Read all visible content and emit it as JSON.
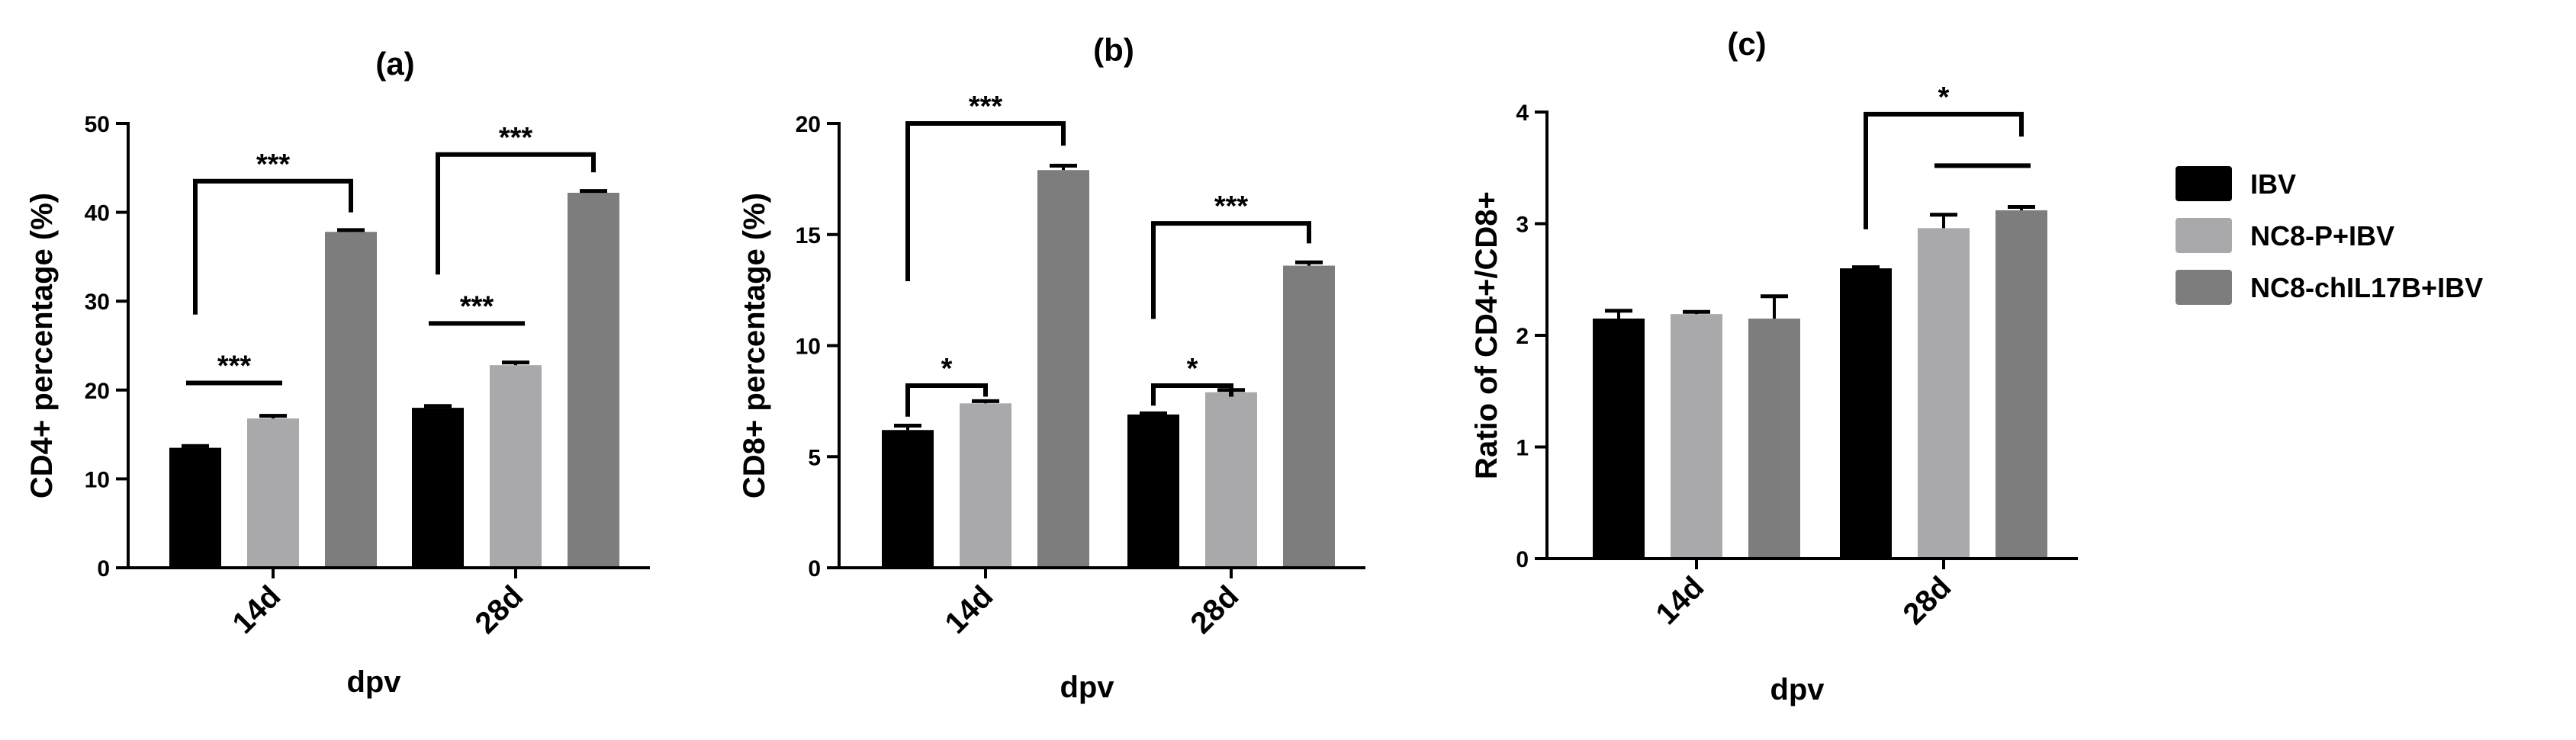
{
  "legend": [
    {
      "label": "IBV",
      "color": "#000000"
    },
    {
      "label": "NC8-P+IBV",
      "color": "#a9a9ab"
    },
    {
      "label": "NC8-chIL17B+IBV",
      "color": "#7d7d7d"
    }
  ],
  "chart_data": [
    {
      "type": "bar",
      "title": "(a)",
      "xlabel": "dpv",
      "ylabel": "CD4+ percentage (%)",
      "ylim": [
        0,
        50
      ],
      "yticks": [
        0,
        10,
        20,
        30,
        40,
        50
      ],
      "categories": [
        "14d",
        "28d"
      ],
      "series": [
        {
          "name": "IBV",
          "values": [
            13.5,
            18
          ],
          "errors": [
            0.2,
            0.2
          ]
        },
        {
          "name": "NC8-P+IBV",
          "values": [
            16.8,
            22.8
          ],
          "errors": [
            0.3,
            0.3
          ]
        },
        {
          "name": "NC8-chIL17B+IBV",
          "values": [
            37.8,
            42.2
          ],
          "errors": [
            0.2,
            0.2
          ]
        }
      ],
      "significance": [
        {
          "category": 0,
          "from": 0,
          "to": 1,
          "label": "***",
          "y": 20.8,
          "style": "line"
        },
        {
          "category": 0,
          "from": 0,
          "to": 2,
          "label": "***",
          "y": 43.5,
          "style": "bracket",
          "drop_left": 28.5,
          "drop_right": 40
        },
        {
          "category": 1,
          "from": 0,
          "to": 1,
          "label": "***",
          "y": 27.5,
          "style": "line"
        },
        {
          "category": 1,
          "from": 0,
          "to": 2,
          "label": "***",
          "y": 46.5,
          "style": "bracket",
          "drop_left": 33,
          "drop_right": 44.5
        }
      ]
    },
    {
      "type": "bar",
      "title": "(b)",
      "xlabel": "dpv",
      "ylabel": "CD8+ percentage (%)",
      "ylim": [
        0,
        20
      ],
      "yticks": [
        0,
        5,
        10,
        15,
        20
      ],
      "categories": [
        "14d",
        "28d"
      ],
      "series": [
        {
          "name": "IBV",
          "values": [
            6.2,
            6.9
          ],
          "errors": [
            0.2,
            0.05
          ]
        },
        {
          "name": "NC8-P+IBV",
          "values": [
            7.4,
            7.9
          ],
          "errors": [
            0.1,
            0.1
          ]
        },
        {
          "name": "NC8-chIL17B+IBV",
          "values": [
            17.9,
            13.6
          ],
          "errors": [
            0.2,
            0.15
          ]
        }
      ],
      "significance": [
        {
          "category": 0,
          "from": 0,
          "to": 1,
          "label": "*",
          "y": 8.2,
          "style": "bracket",
          "drop_left": 6.8,
          "drop_right": 7.7
        },
        {
          "category": 0,
          "from": 0,
          "to": 2,
          "label": "***",
          "y": 20.0,
          "style": "bracket",
          "drop_left": 12.9,
          "drop_right": 19.0
        },
        {
          "category": 1,
          "from": 0,
          "to": 1,
          "label": "*",
          "y": 8.2,
          "style": "bracket",
          "drop_left": 7.3,
          "drop_right": 7.7
        },
        {
          "category": 1,
          "from": 0,
          "to": 2,
          "label": "***",
          "y": 15.5,
          "style": "bracket",
          "drop_left": 11.2,
          "drop_right": 14.6
        }
      ]
    },
    {
      "type": "bar",
      "title": "(c)",
      "xlabel": "dpv",
      "ylabel": "Ratio of CD4+/CD8+",
      "ylim": [
        0,
        4
      ],
      "yticks": [
        0,
        1,
        2,
        3,
        4
      ],
      "categories": [
        "14d",
        "28d"
      ],
      "series": [
        {
          "name": "IBV",
          "values": [
            2.15,
            2.6
          ],
          "errors": [
            0.07,
            0.01
          ]
        },
        {
          "name": "NC8-P+IBV",
          "values": [
            2.19,
            2.96
          ],
          "errors": [
            0.02,
            0.12
          ]
        },
        {
          "name": "NC8-chIL17B+IBV",
          "values": [
            2.15,
            3.12
          ],
          "errors": [
            0.2,
            0.03
          ]
        }
      ],
      "significance": [
        {
          "category": 1,
          "from": 0,
          "to": 2,
          "label": "*",
          "y": 3.98,
          "style": "bracket",
          "drop_left": 2.95,
          "drop_right": 3.78
        },
        {
          "category": 1,
          "from": 1,
          "to": 2,
          "label": "",
          "y": 3.52,
          "style": "line"
        }
      ]
    }
  ]
}
